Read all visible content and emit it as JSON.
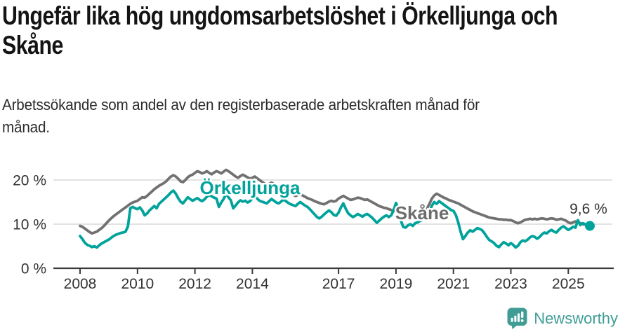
{
  "header": {
    "title_lines": [
      "Ungefär lika hög ungdomsarbetslöshet i Örkelljunga och",
      "Skåne"
    ],
    "subtitle_lines": [
      "Arbetssökande som andel av den registerbaserade arbetskraften månad för",
      "månad."
    ]
  },
  "footer": {
    "brand": "Newsworthy"
  },
  "colors": {
    "orkelljunga": "#00a39b",
    "skane": "#717171",
    "skane_label": "#6d6d6d",
    "gridline": "#d9d9d9",
    "axis": "#3a3a3a",
    "tick_text": "#333333",
    "value_text": "#333333",
    "logo_teal": "#3f9d96"
  },
  "chart_data": {
    "type": "line",
    "unit": "%",
    "ylim": [
      0,
      23
    ],
    "grid": "horizontal",
    "legend_position": "inline-labels",
    "yticks": [
      {
        "value": 0,
        "label": "0 %"
      },
      {
        "value": 10,
        "label": "10 %"
      },
      {
        "value": 20,
        "label": "20 %"
      }
    ],
    "xticks": [
      {
        "value": 2008,
        "label": "2008"
      },
      {
        "value": 2010,
        "label": "2010"
      },
      {
        "value": 2012,
        "label": "2012"
      },
      {
        "value": 2014,
        "label": "2014"
      },
      {
        "value": 2017,
        "label": "2017"
      },
      {
        "value": 2019,
        "label": "2019"
      },
      {
        "value": 2021,
        "label": "2021"
      },
      {
        "value": 2023,
        "label": "2023"
      },
      {
        "value": 2025,
        "label": "2025"
      }
    ],
    "annotations": {
      "orkelljunga_label": "Örkelljunga",
      "skane_label": "Skåne",
      "last_value_label": "9,6 %",
      "last_value": 9.6
    },
    "series": [
      {
        "id": "skane",
        "name": "Skåne",
        "color": "#717171",
        "start_year": 2008,
        "start_month": 1,
        "values": [
          9.6,
          9.4,
          9.0,
          8.6,
          8.2,
          7.9,
          8.1,
          8.3,
          8.7,
          9.1,
          9.6,
          10.2,
          10.8,
          11.3,
          11.8,
          12.2,
          12.6,
          13.0,
          13.4,
          13.8,
          14.2,
          14.6,
          14.9,
          15.1,
          15.3,
          15.7,
          16.1,
          16.0,
          16.4,
          16.9,
          17.4,
          17.9,
          18.3,
          18.7,
          19.0,
          19.3,
          19.7,
          20.3,
          20.8,
          21.1,
          20.8,
          20.3,
          19.7,
          19.5,
          20.0,
          20.6,
          21.0,
          21.2,
          21.6,
          22.0,
          21.8,
          21.5,
          21.7,
          22.0,
          21.6,
          21.3,
          21.7,
          22.0,
          21.8,
          21.5,
          21.9,
          22.3,
          22.0,
          21.6,
          21.2,
          20.8,
          20.5,
          20.9,
          21.2,
          20.9,
          20.6,
          20.3,
          20.5,
          20.8,
          20.4,
          20.0,
          19.6,
          19.2,
          18.9,
          19.1,
          19.4,
          19.1,
          18.7,
          18.3,
          18.1,
          17.9,
          17.6,
          17.3,
          17.0,
          16.7,
          16.4,
          16.6,
          16.8,
          16.5,
          16.2,
          15.9,
          15.7,
          15.5,
          15.2,
          15.0,
          14.8,
          14.6,
          14.5,
          14.8,
          15.1,
          15.3,
          15.1,
          15.3,
          15.8,
          16.1,
          16.4,
          16.1,
          15.8,
          15.5,
          15.6,
          15.8,
          16.0,
          15.9,
          15.7,
          15.5,
          15.6,
          15.3,
          15.0,
          14.7,
          14.4,
          14.1,
          13.9,
          13.7,
          13.6,
          13.4,
          13.2,
          13.0,
          13.0,
          12.9,
          12.8,
          12.7,
          12.7,
          12.8,
          12.9,
          13.0,
          13.1,
          13.0,
          13.1,
          13.2,
          13.4,
          13.6,
          14.6,
          15.8,
          16.5,
          16.9,
          16.6,
          16.3,
          16.0,
          15.8,
          15.5,
          15.3,
          15.1,
          14.9,
          14.7,
          14.4,
          14.1,
          13.8,
          13.5,
          13.2,
          12.9,
          12.7,
          12.5,
          12.3,
          12.1,
          11.9,
          11.7,
          11.5,
          11.4,
          11.3,
          11.2,
          11.1,
          11.1,
          11.0,
          11.0,
          10.9,
          10.9,
          10.7,
          10.4,
          10.2,
          10.4,
          10.7,
          11.0,
          11.1,
          11.2,
          11.1,
          11.2,
          11.1,
          11.2,
          11.3,
          11.2,
          11.1,
          11.2,
          11.3,
          11.2,
          11.0,
          11.1,
          11.2,
          11.0,
          10.8,
          10.4,
          10.2,
          10.4,
          10.6,
          10.5,
          10.2,
          10.0,
          9.9
        ]
      },
      {
        "id": "orkelljunga",
        "name": "Örkelljunga",
        "color": "#00a39b",
        "start_year": 2008,
        "start_month": 1,
        "end_dot": true,
        "values": [
          7.3,
          6.6,
          5.8,
          5.3,
          5.1,
          4.8,
          5.0,
          4.7,
          5.2,
          5.6,
          5.9,
          6.2,
          6.5,
          6.9,
          7.3,
          7.6,
          7.8,
          8.0,
          8.1,
          8.3,
          9.5,
          13.6,
          13.9,
          13.6,
          13.4,
          13.8,
          13.1,
          12.0,
          12.4,
          13.1,
          13.6,
          14.1,
          13.6,
          14.6,
          15.1,
          15.6,
          16.1,
          16.6,
          17.2,
          17.6,
          16.9,
          15.9,
          15.1,
          14.7,
          15.4,
          16.1,
          15.7,
          15.3,
          15.6,
          15.9,
          15.5,
          15.2,
          15.6,
          16.2,
          16.6,
          16.3,
          16.0,
          15.8,
          13.9,
          14.9,
          15.7,
          16.9,
          16.1,
          15.4,
          13.6,
          14.2,
          14.9,
          15.4,
          15.1,
          15.3,
          14.9,
          15.2,
          15.9,
          16.4,
          15.8,
          15.3,
          15.1,
          14.9,
          14.7,
          15.2,
          15.7,
          15.3,
          14.9,
          14.7,
          15.1,
          15.6,
          15.2,
          14.8,
          14.5,
          14.3,
          14.1,
          14.6,
          15.0,
          14.6,
          14.2,
          13.9,
          13.4,
          12.8,
          12.2,
          11.6,
          11.3,
          11.7,
          12.2,
          12.7,
          13.1,
          12.7,
          12.1,
          11.9,
          12.6,
          13.8,
          14.7,
          13.5,
          12.5,
          12.0,
          11.6,
          11.9,
          12.3,
          12.0,
          11.7,
          12.1,
          12.3,
          11.9,
          11.5,
          10.9,
          10.3,
          10.8,
          11.3,
          11.7,
          12.0,
          11.6,
          12.0,
          13.1,
          14.8,
          13.6,
          10.9,
          9.4,
          9.2,
          9.7,
          10.0,
          9.6,
          10.2,
          10.4,
          10.7,
          11.0,
          11.4,
          11.9,
          12.6,
          14.2,
          15.0,
          14.6,
          15.2,
          14.8,
          14.4,
          14.0,
          13.6,
          13.2,
          13.0,
          12.1,
          10.4,
          8.3,
          6.6,
          7.3,
          8.1,
          8.6,
          8.3,
          8.7,
          9.1,
          8.9,
          8.6,
          7.9,
          7.1,
          6.4,
          6.1,
          5.7,
          5.1,
          4.8,
          5.4,
          5.9,
          5.6,
          5.2,
          5.7,
          5.3,
          4.7,
          5.1,
          5.9,
          6.3,
          6.1,
          6.5,
          7.0,
          7.3,
          7.1,
          6.7,
          7.1,
          7.7,
          8.1,
          7.9,
          8.4,
          8.7,
          8.3,
          8.1,
          8.7,
          9.2,
          9.5,
          9.1,
          8.7,
          9.0,
          9.4,
          9.2,
          10.9,
          9.8,
          10.2,
          10.0,
          9.8,
          9.6
        ]
      }
    ]
  }
}
